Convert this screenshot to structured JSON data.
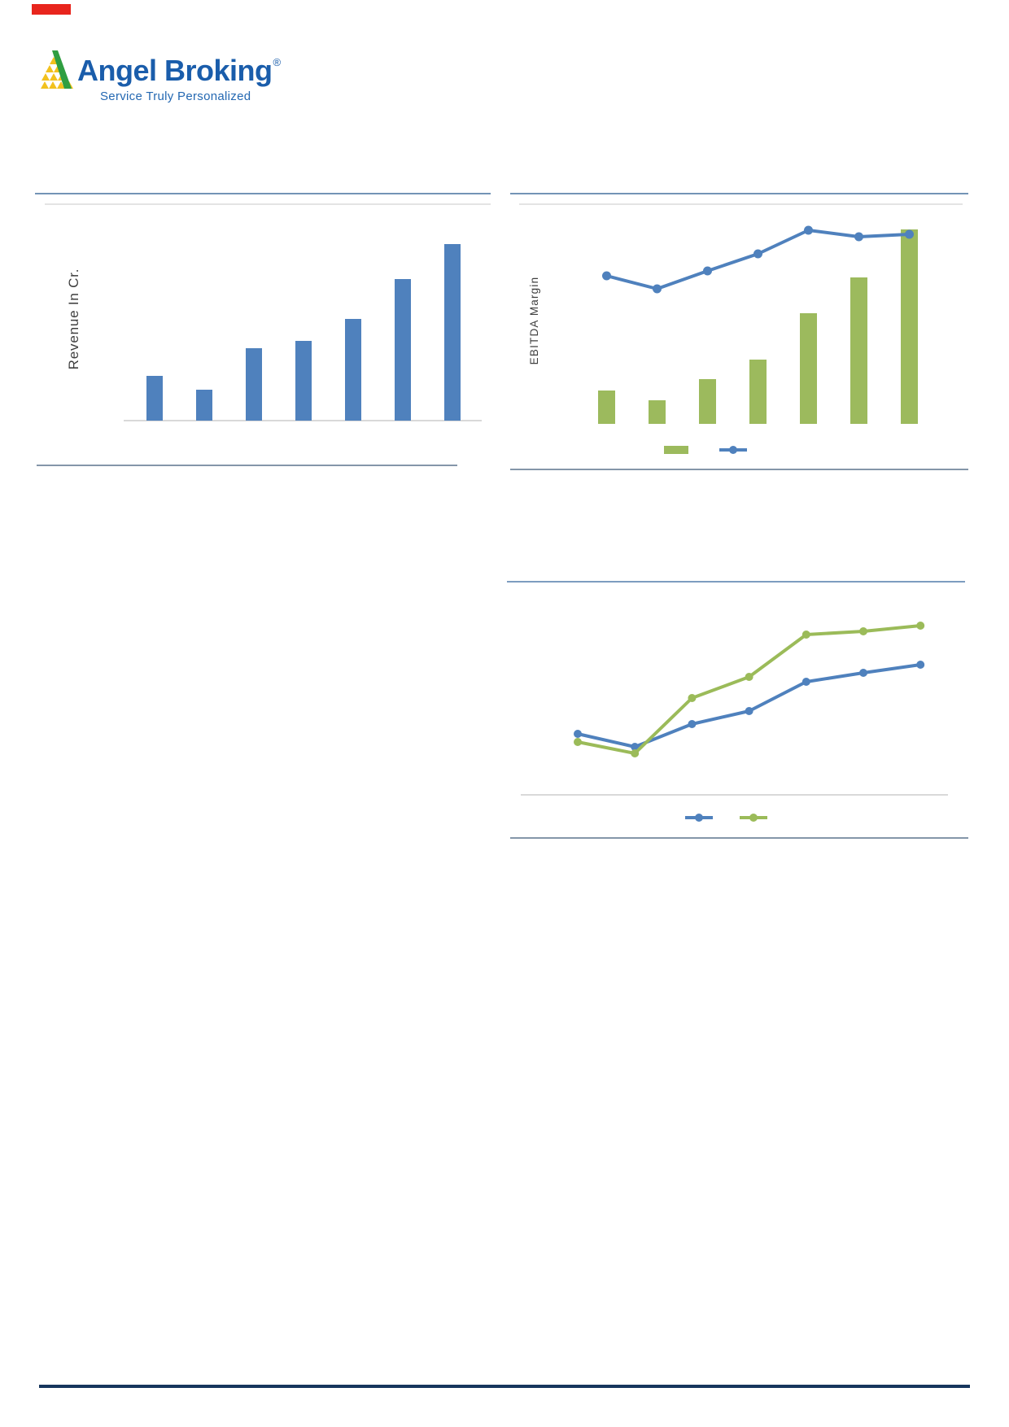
{
  "header": {
    "logo": {
      "brand": "Angel Broking",
      "registered": "®",
      "tagline": "Service Truly Personalized",
      "brand_color": "#1a5dab",
      "triangle_green": "#2f9e41",
      "triangle_yellow": "#f2c11e"
    },
    "red_mark_color": "#e8251d"
  },
  "colors": {
    "bar_blue": "#4f81bd",
    "series_green": "#9bbb59",
    "separator_top": "#7394b6",
    "separator_bottom": "#8496a9",
    "bottom_rule_navy": "#17365d",
    "axis_gray": "#d9d9d9"
  },
  "chart_data": [
    {
      "id": "revenue_bar",
      "type": "bar",
      "title": "",
      "xlabel": "",
      "ylabel": "Revenue In Cr.",
      "categories": [
        "",
        "",
        "",
        "",
        "",
        "",
        ""
      ],
      "values": [
        55,
        38,
        89,
        98,
        125,
        174,
        217
      ],
      "bar_color": "#4f81bd",
      "units": "relative (no tick labels shown)",
      "grid": "off",
      "axis_line": "light gray baseline only"
    },
    {
      "id": "ebitda_combo",
      "type": "bar",
      "title": "",
      "xlabel": "",
      "ylabel": "EBITDA Margin",
      "categories": [
        "",
        "",
        "",
        "",
        "",
        "",
        ""
      ],
      "series": [
        {
          "name": "",
          "type": "bar",
          "color": "#9cba5d",
          "values": [
            41,
            29,
            55,
            79,
            136,
            180,
            239
          ]
        },
        {
          "name": "",
          "type": "line",
          "color": "#4f81bd",
          "values": [
            182,
            166,
            188,
            209,
            238,
            230,
            233
          ]
        }
      ],
      "units": "relative (no tick labels shown)",
      "grid": "off",
      "legend": {
        "position": "bottom",
        "entries": [
          "",
          ""
        ]
      }
    },
    {
      "id": "bottom_lines",
      "type": "line",
      "title": "",
      "xlabel": "",
      "ylabel": "",
      "categories": [
        "",
        "",
        "",
        "",
        "",
        "",
        ""
      ],
      "series": [
        {
          "name": "",
          "type": "line",
          "color": "#4f81bd",
          "values": [
            75,
            59,
            87,
            103,
            139,
            150,
            160
          ]
        },
        {
          "name": "",
          "type": "line",
          "color": "#9bbb59",
          "values": [
            65,
            51,
            119,
            145,
            197,
            201,
            208
          ]
        }
      ],
      "units": "relative (no tick labels shown)",
      "grid": "off",
      "legend": {
        "position": "bottom",
        "entries": [
          "",
          ""
        ]
      }
    }
  ]
}
